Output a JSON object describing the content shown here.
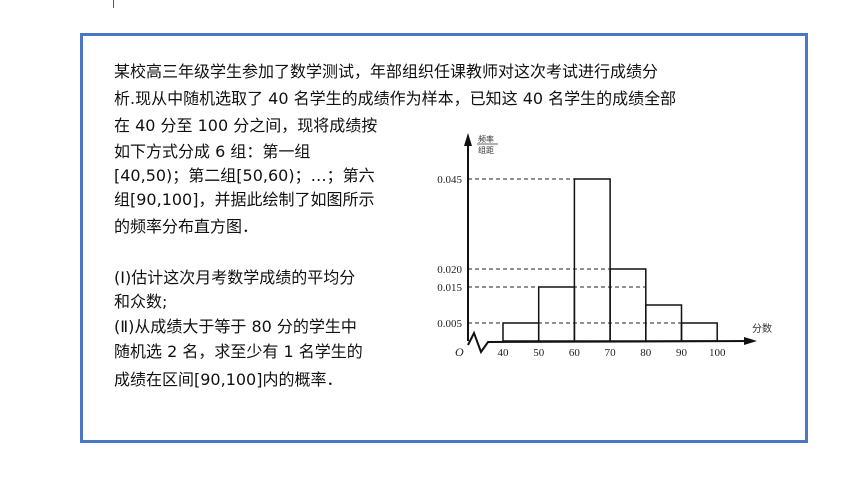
{
  "problem": {
    "lines": [
      "某校高三年级学生参加了数学测试，年部组织任课教师对这次考试进行成绩分",
      "析.现从中随机选取了 40 名学生的成绩作为样本，已知这 40 名学生的成绩全部",
      "在 40 分至 100 分之间，现将成绩按",
      "如下方式分成 6 组：第一组",
      "[40,50)；第二组[50,60)；…；第六",
      "组[90,100]，并据此绘制了如图所示",
      "的频率分布直方图．",
      "",
      "(Ⅰ)估计这次月考数学成绩的平均分",
      "和众数;",
      "(Ⅱ)从成绩大于等于 80 分的学生中",
      "随机选 2 名，求至少有 1 名学生的",
      "成绩在区间[90,100]内的概率．"
    ]
  },
  "colors": {
    "border": "#4a76c6"
  },
  "chart_data": {
    "type": "bar",
    "subtype": "histogram",
    "bins": [
      [
        40,
        50
      ],
      [
        50,
        60
      ],
      [
        60,
        70
      ],
      [
        70,
        80
      ],
      [
        80,
        90
      ],
      [
        90,
        100
      ]
    ],
    "values": [
      0.005,
      0.015,
      0.045,
      0.02,
      0.01,
      0.005
    ],
    "x_ticks": [
      "40",
      "50",
      "60",
      "70",
      "80",
      "90",
      "100"
    ],
    "y_ticks": [
      "0.005",
      "0.015",
      "0.020",
      "0.045"
    ],
    "ylabel_numerator": "频率",
    "ylabel_denominator": "组距",
    "xlabel": "分数",
    "origin_label": "O",
    "xlim": [
      40,
      100
    ],
    "ylim": [
      0,
      0.05
    ],
    "grid": false
  }
}
